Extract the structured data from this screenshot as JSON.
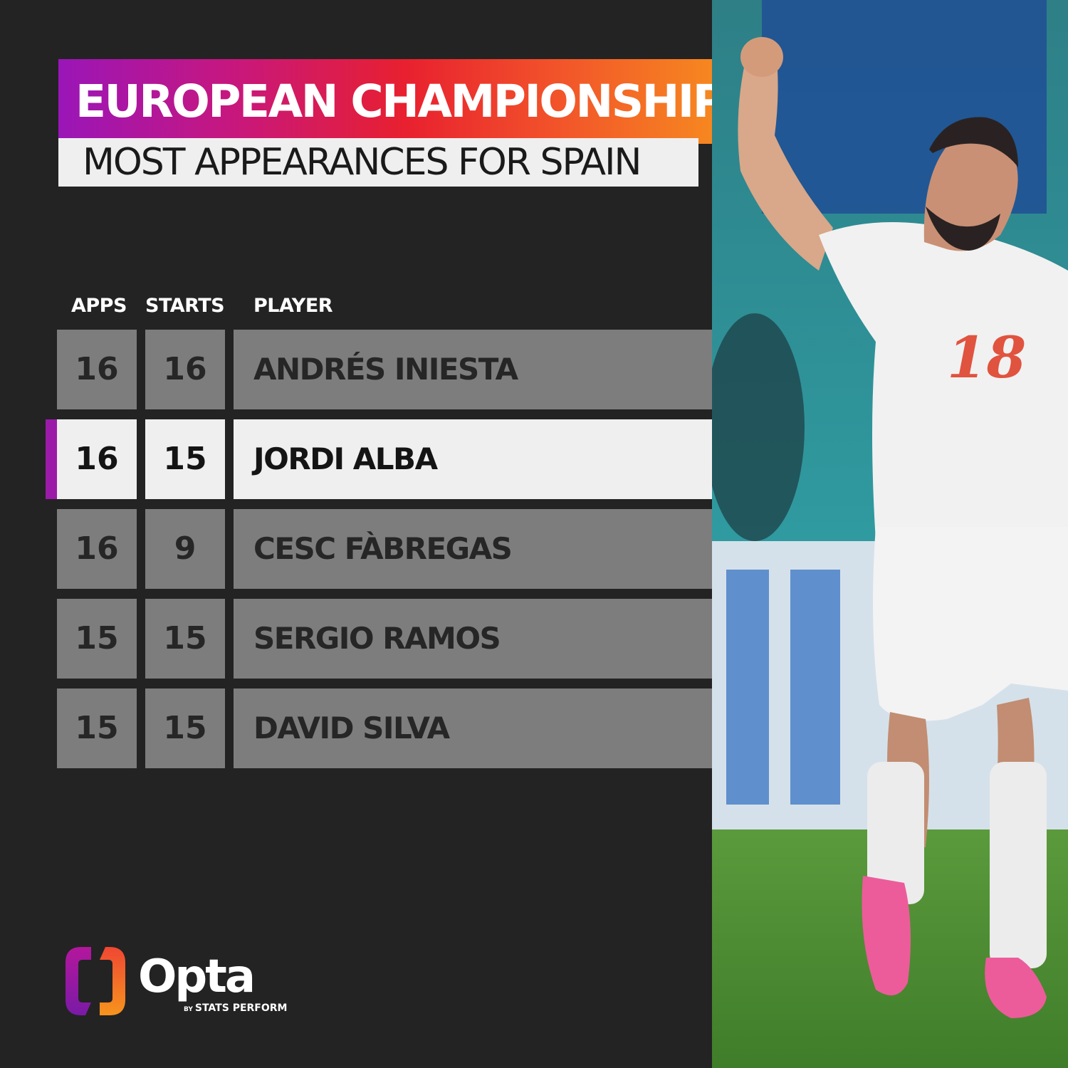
{
  "header": {
    "title": "EUROPEAN CHAMPIONSHIP",
    "subtitle": "MOST APPEARANCES FOR SPAIN"
  },
  "chart_data": {
    "type": "table",
    "columns": [
      "APPS",
      "STARTS",
      "PLAYER"
    ],
    "rows": [
      {
        "apps": "16",
        "starts": "16",
        "player": "ANDRÉS INIESTA",
        "highlight": false
      },
      {
        "apps": "16",
        "starts": "15",
        "player": "JORDI ALBA",
        "highlight": true
      },
      {
        "apps": "16",
        "starts": "9",
        "player": "CESC FÀBREGAS",
        "highlight": false
      },
      {
        "apps": "15",
        "starts": "15",
        "player": "SERGIO RAMOS",
        "highlight": false
      },
      {
        "apps": "15",
        "starts": "15",
        "player": "DAVID SILVA",
        "highlight": false
      }
    ]
  },
  "brand": {
    "name": "Opta",
    "by": "BY",
    "tagline": "STATS PERFORM"
  },
  "photo": {
    "shirt_number": "18"
  },
  "colors": {
    "background": "#232323",
    "row_default": "#7d7d7d",
    "row_highlight": "#efefef",
    "accent": "#9b1ba8",
    "gradient_start": "#9a16b8",
    "gradient_end": "#f7941d"
  }
}
